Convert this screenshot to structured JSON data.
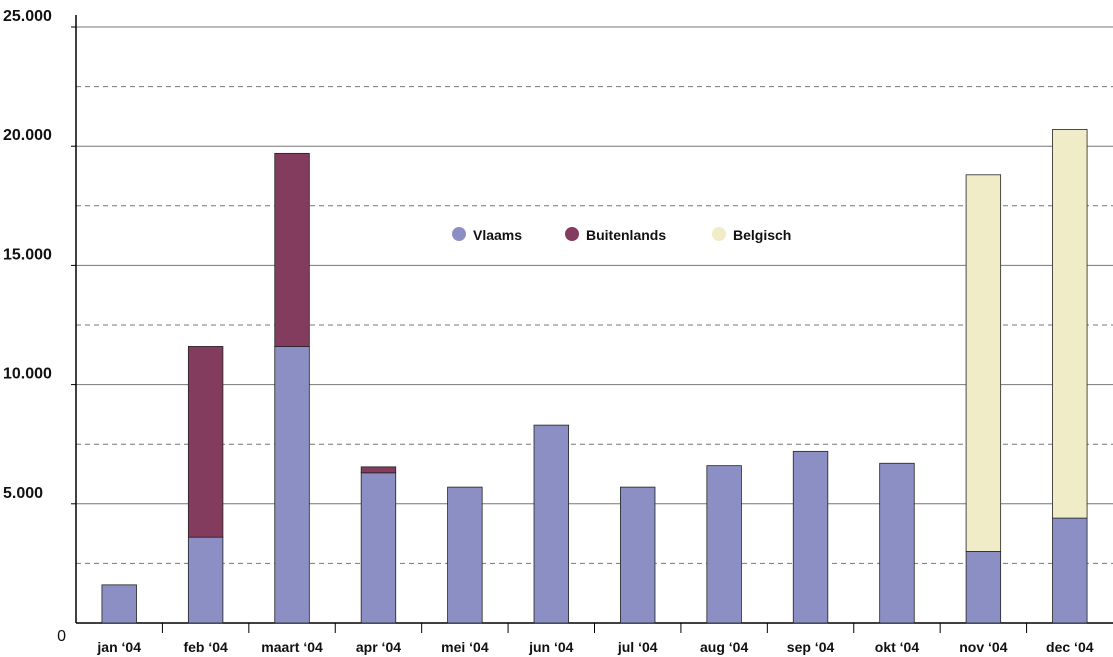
{
  "chart_data": {
    "type": "stacked_bar",
    "categories": [
      "jan ‘04",
      "feb ‘04",
      "maart ‘04",
      "apr ‘04",
      "mei ‘04",
      "jun ‘04",
      "jul ‘04",
      "aug ‘04",
      "sep ‘04",
      "okt ‘04",
      "nov ‘04",
      "dec ‘04"
    ],
    "series": [
      {
        "name": "Vlaams",
        "color": "#8b8fc4",
        "values": [
          1600,
          3600,
          11600,
          6300,
          5700,
          8300,
          5700,
          6600,
          7200,
          6700,
          3000,
          4400
        ]
      },
      {
        "name": "Buitenlands",
        "color": "#843c5e",
        "values": [
          null,
          8000,
          8100,
          250,
          null,
          null,
          null,
          null,
          null,
          null,
          null,
          null
        ]
      },
      {
        "name": "Belgisch",
        "color": "#f0ecc8",
        "values": [
          null,
          null,
          null,
          null,
          null,
          null,
          null,
          null,
          null,
          null,
          15800,
          16300
        ]
      }
    ],
    "ylim": [
      0,
      25000
    ],
    "yticks": [
      0,
      {
        "value": 5000,
        "label": "5.000"
      },
      {
        "value": 10000,
        "label": "10.000"
      },
      {
        "value": 15000,
        "label": "15.000"
      },
      {
        "value": 20000,
        "label": "20.000"
      },
      {
        "value": 25000,
        "label": "25.000"
      }
    ],
    "yminor": [
      2500,
      7500,
      12500,
      17500,
      22500
    ],
    "grid": true,
    "legend": "top"
  }
}
